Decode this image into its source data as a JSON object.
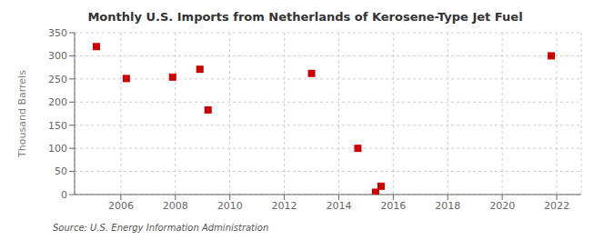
{
  "chart_data": {
    "type": "scatter",
    "title": "Monthly U.S. Imports from Netherlands of Kerosene-Type Jet Fuel",
    "ylabel": "Thousand Barrels",
    "annotations": [
      "Source: U.S. Energy Information Administration"
    ],
    "x": [
      2005.1,
      2006.2,
      2007.9,
      2008.9,
      2009.2,
      2013.0,
      2014.7,
      2015.35,
      2015.55,
      2021.8
    ],
    "values": [
      320,
      251,
      254,
      271,
      183,
      262,
      100,
      5,
      18,
      300
    ],
    "color": "#cc0000",
    "marker": "square",
    "xlim": [
      2004.3,
      2022.9
    ],
    "ylim": [
      0,
      350
    ],
    "xticks": [
      2006,
      2008,
      2010,
      2012,
      2014,
      2016,
      2018,
      2020,
      2022
    ],
    "yticks": [
      0,
      50,
      100,
      150,
      200,
      250,
      300,
      350
    ],
    "grid": true
  }
}
